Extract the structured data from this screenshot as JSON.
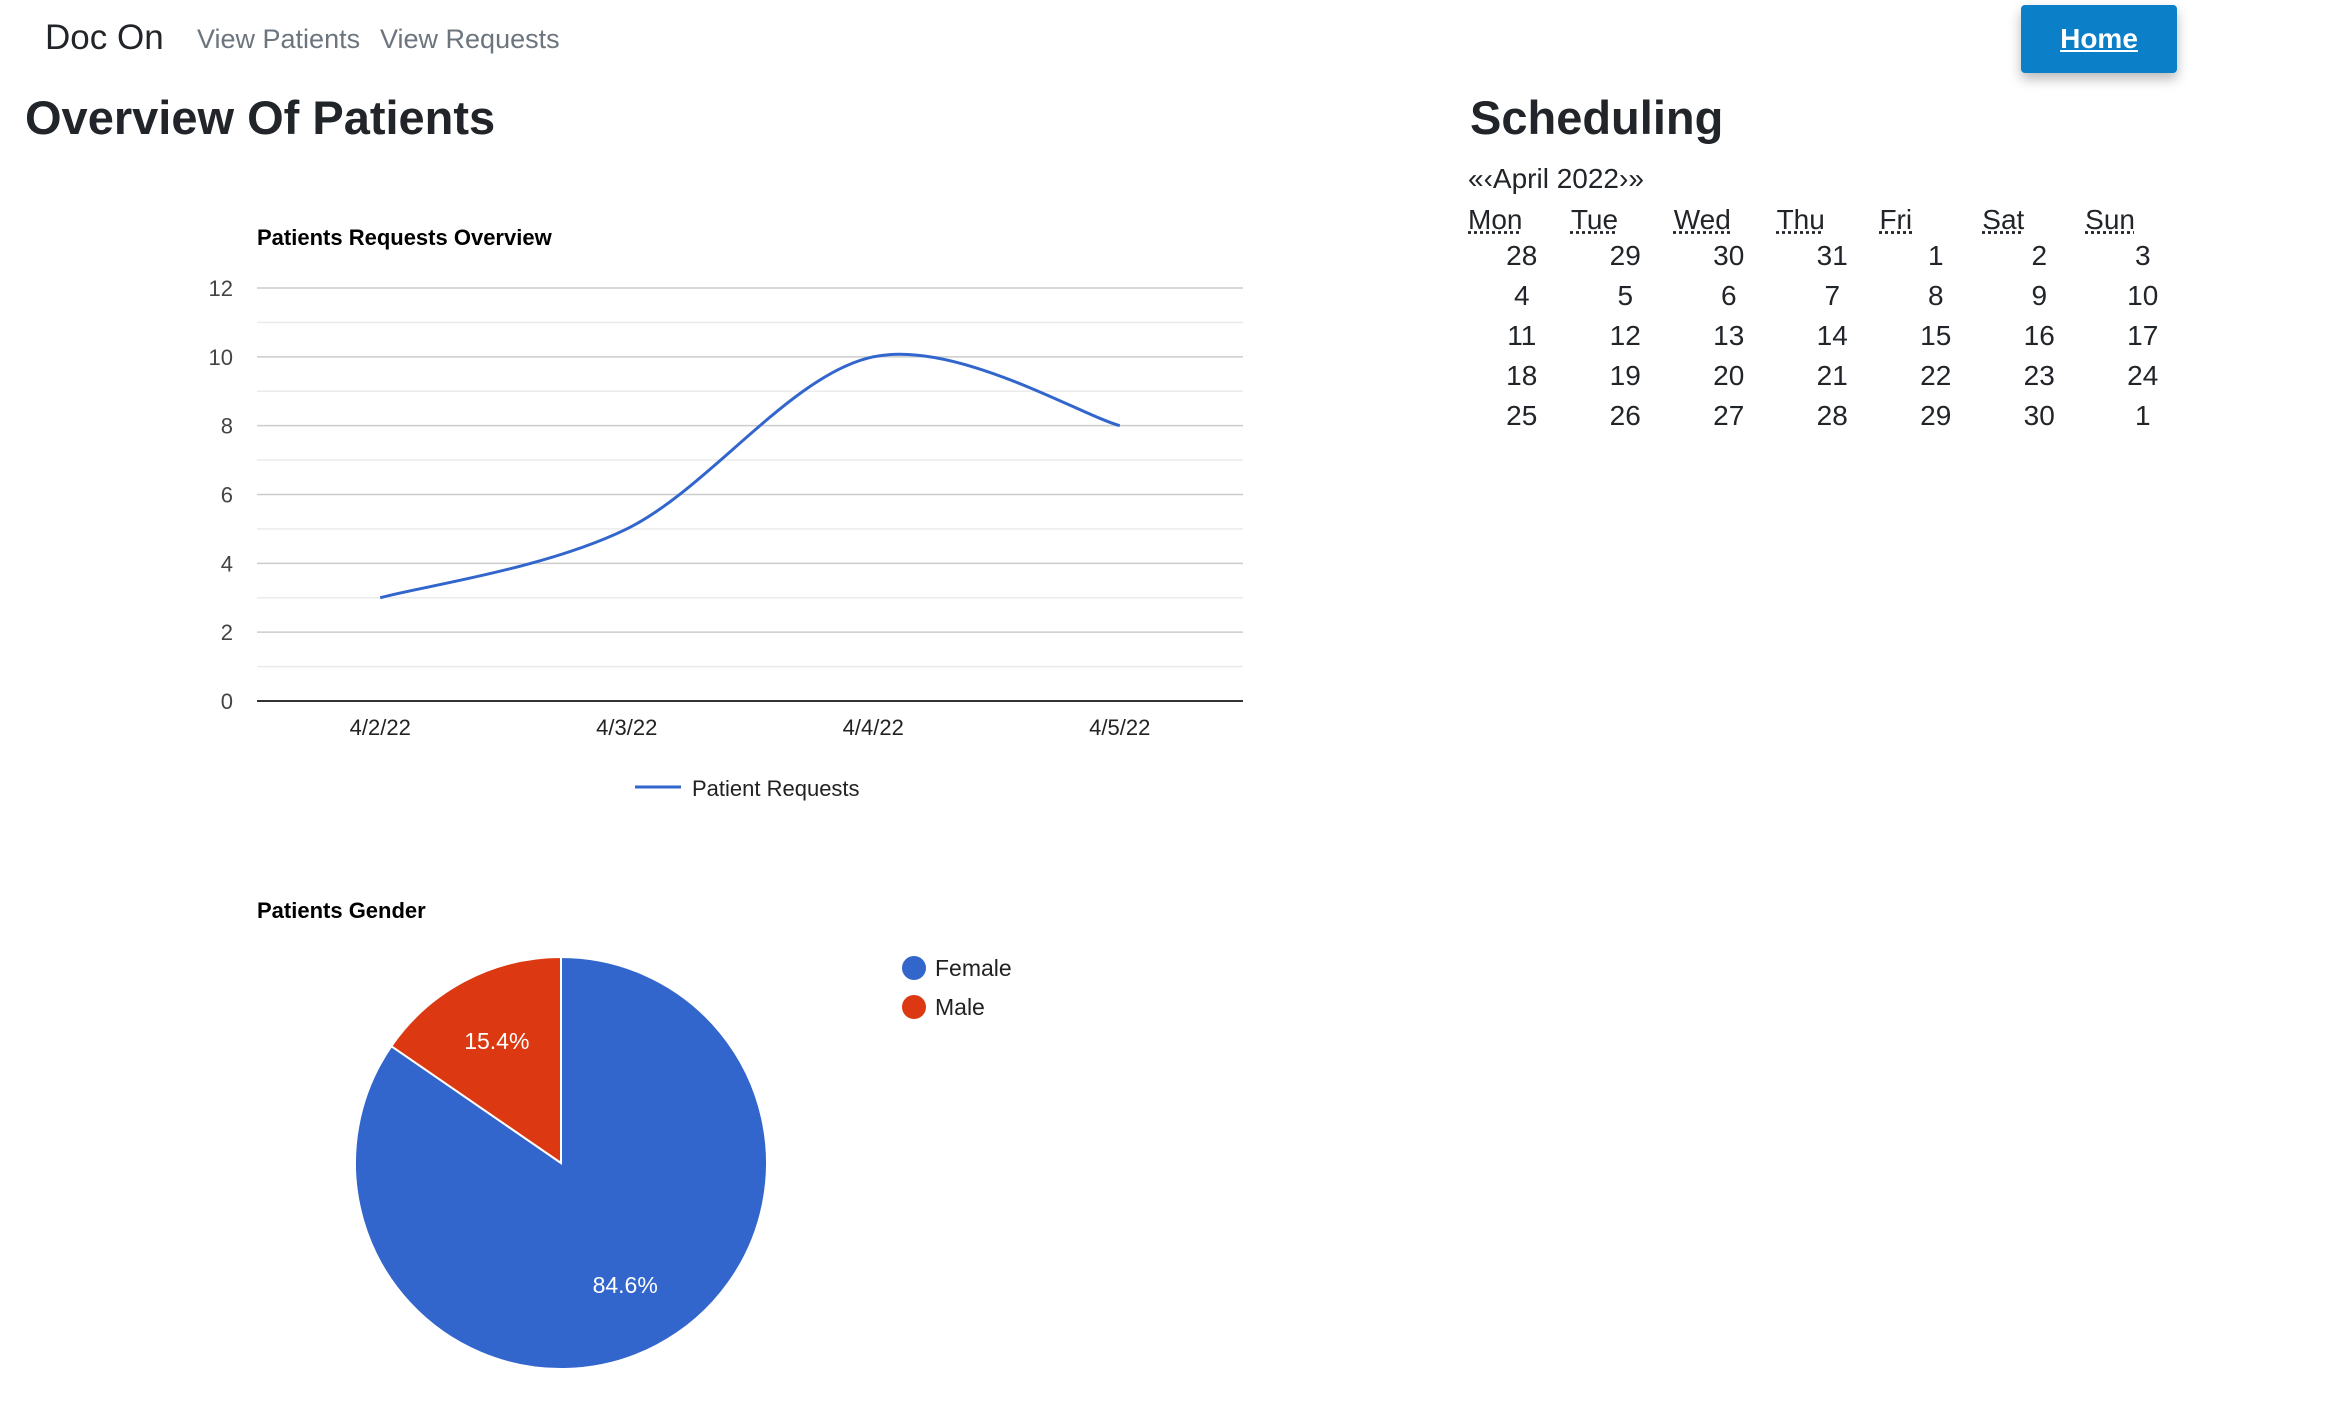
{
  "navbar": {
    "brand": "Doc On",
    "links": [
      "View Patients",
      "View Requests"
    ],
    "home_button": "Home",
    "home_color": "#0b7fc7"
  },
  "overview": {
    "title": "Overview Of Patients"
  },
  "scheduling": {
    "title": "Scheduling",
    "nav": {
      "prev_year": "«",
      "prev_month": "‹",
      "label": "April 2022",
      "next_month": "›",
      "next_year": "»"
    },
    "weekdays": [
      "Mon",
      "Tue",
      "Wed",
      "Thu",
      "Fri",
      "Sat",
      "Sun"
    ],
    "weeks": [
      [
        "28",
        "29",
        "30",
        "31",
        "1",
        "2",
        "3"
      ],
      [
        "4",
        "5",
        "6",
        "7",
        "8",
        "9",
        "10"
      ],
      [
        "11",
        "12",
        "13",
        "14",
        "15",
        "16",
        "17"
      ],
      [
        "18",
        "19",
        "20",
        "21",
        "22",
        "23",
        "24"
      ],
      [
        "25",
        "26",
        "27",
        "28",
        "29",
        "30",
        "1"
      ]
    ]
  },
  "chart_data": [
    {
      "type": "line",
      "title": "Patients Requests Overview",
      "categories": [
        "4/2/22",
        "4/3/22",
        "4/4/22",
        "4/5/22"
      ],
      "series": [
        {
          "name": "Patient Requests",
          "values": [
            3,
            5,
            10,
            8
          ],
          "color": "#3366cc"
        }
      ],
      "ylim": [
        0,
        12
      ],
      "yticks": [
        0,
        2,
        4,
        6,
        8,
        10,
        12
      ],
      "grid": true,
      "legend": "bottom",
      "curve": "smooth"
    },
    {
      "type": "pie",
      "title": "Patients Gender",
      "slices": [
        {
          "label": "Female",
          "value": 84.6,
          "display": "84.6%",
          "color": "#3366cc"
        },
        {
          "label": "Male",
          "value": 15.4,
          "display": "15.4%",
          "color": "#dc3912"
        }
      ],
      "legend": "right"
    }
  ]
}
